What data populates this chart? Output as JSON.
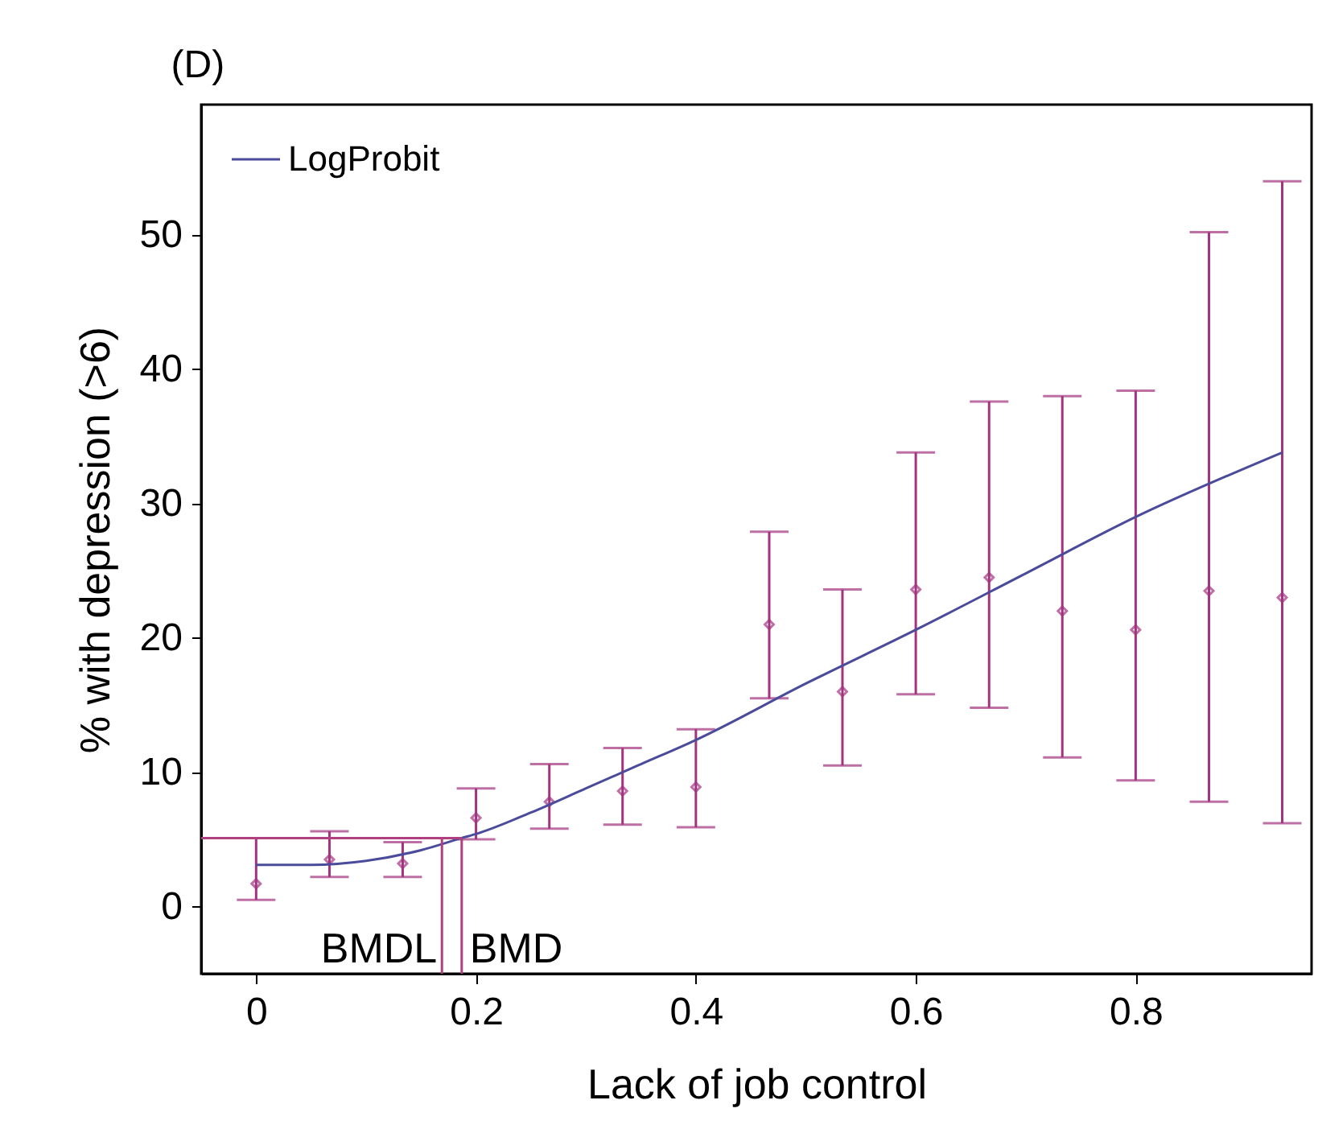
{
  "chart_data": {
    "type": "scatter",
    "title": "(D)",
    "xlabel": "Lack of job control",
    "ylabel": "% with depression (>6)",
    "x": [
      0,
      0.0667,
      0.1333,
      0.2,
      0.2667,
      0.3333,
      0.4,
      0.4667,
      0.5333,
      0.6,
      0.6667,
      0.7333,
      0.8,
      0.8667,
      0.9333
    ],
    "series": [
      {
        "color": "#a3337f",
        "marker": "diamond",
        "values": [
          1.7,
          3.5,
          3.2,
          6.6,
          7.8,
          8.6,
          8.9,
          21.0,
          16.0,
          23.6,
          24.5,
          22.0,
          20.6,
          23.5,
          23.0
        ],
        "errors": [
          [
            0.5,
            5.1
          ],
          [
            2.2,
            5.6
          ],
          [
            2.2,
            4.8
          ],
          [
            5.0,
            8.8
          ],
          [
            5.8,
            10.6
          ],
          [
            6.1,
            11.8
          ],
          [
            5.9,
            13.2
          ],
          [
            15.5,
            27.9
          ],
          [
            10.5,
            23.6
          ],
          [
            15.8,
            33.8
          ],
          [
            14.8,
            37.6
          ],
          [
            11.1,
            38.0
          ],
          [
            9.4,
            38.4
          ],
          [
            7.8,
            50.2
          ],
          [
            6.2,
            54.0
          ]
        ]
      },
      {
        "type": "line",
        "name": "LogProbit",
        "color": "#4b4b9b",
        "marker": "none",
        "x": [
          0,
          0.05,
          0.1,
          0.15,
          0.187,
          0.2,
          0.25,
          0.3,
          0.35,
          0.4,
          0.5,
          0.6,
          0.7,
          0.8,
          0.9333
        ],
        "values": [
          3.1,
          3.1,
          3.4,
          4.2,
          5.1,
          5.4,
          7.0,
          8.8,
          10.6,
          12.4,
          16.6,
          20.6,
          24.8,
          29.0,
          33.8
        ]
      }
    ],
    "ref_lines": [
      {
        "axis": "y",
        "value": 5.1,
        "label": null,
        "color": "#b0407f"
      },
      {
        "axis": "x",
        "value": 0.169,
        "label": "BMDL",
        "color": "#b0407f"
      },
      {
        "axis": "x",
        "value": 0.187,
        "label": "BMD",
        "color": "#b0407f"
      }
    ],
    "xlim": [
      -0.05,
      0.96
    ],
    "ylim": [
      -5,
      59.7
    ],
    "xticks": [
      0,
      0.2,
      0.4,
      0.6,
      0.8
    ],
    "yticks": [
      0,
      10,
      20,
      30,
      40,
      50
    ],
    "grid": false,
    "legend": "top left"
  }
}
